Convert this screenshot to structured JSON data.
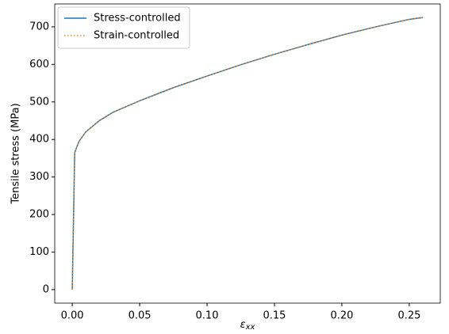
{
  "chart_data": {
    "type": "line",
    "xlabel": {
      "symbol": "ε",
      "subscript": "xx"
    },
    "ylabel": "Tensile stress (MPa)",
    "x": [
      0,
      0.0018,
      0.005,
      0.01,
      0.02,
      0.03,
      0.05,
      0.075,
      0.1,
      0.125,
      0.15,
      0.175,
      0.2,
      0.225,
      0.25,
      0.26
    ],
    "series": [
      {
        "name": "Stress-controlled",
        "color": "#1f77b4",
        "style": "solid",
        "values": [
          0,
          365,
          395,
          420,
          450,
          472,
          503,
          538,
          569,
          599,
          627,
          653,
          678,
          700,
          720,
          725
        ]
      },
      {
        "name": "Strain-controlled",
        "color": "#ff7f0e",
        "style": "dotted",
        "values": [
          0,
          365,
          395,
          420,
          450,
          472,
          503,
          538,
          569,
          599,
          627,
          653,
          678,
          700,
          720,
          725
        ]
      }
    ],
    "xlim": [
      -0.013,
      0.273
    ],
    "ylim": [
      -36,
      761
    ],
    "xticks": [
      {
        "value": 0,
        "label": "0.00"
      },
      {
        "value": 0.05,
        "label": "0.05"
      },
      {
        "value": 0.1,
        "label": "0.10"
      },
      {
        "value": 0.15,
        "label": "0.15"
      },
      {
        "value": 0.2,
        "label": "0.20"
      },
      {
        "value": 0.25,
        "label": "0.25"
      }
    ],
    "yticks": [
      0,
      100,
      200,
      300,
      400,
      500,
      600,
      700
    ],
    "legend": "upper left"
  }
}
